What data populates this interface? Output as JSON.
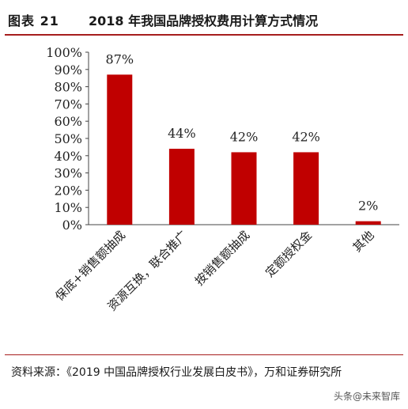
{
  "header": {
    "figure_label": "图表 21",
    "title": "2018 年我国品牌授权费用计算方式情况"
  },
  "chart_data": {
    "type": "bar",
    "categories": [
      "保底+销售额抽成",
      "资源互换，联合推广",
      "按销售额抽成",
      "定额授权金",
      "其他"
    ],
    "values": [
      87,
      44,
      42,
      42,
      2
    ],
    "value_labels": [
      "87%",
      "44%",
      "42%",
      "42%",
      "2%"
    ],
    "y_ticks": [
      "0%",
      "10%",
      "20%",
      "30%",
      "40%",
      "50%",
      "60%",
      "70%",
      "80%",
      "90%",
      "100%"
    ],
    "ylim": [
      0,
      100
    ],
    "bar_color": "#c00000",
    "grid": false,
    "title": "",
    "xlabel": "",
    "ylabel": ""
  },
  "footer": {
    "source_text": "资料来源：《2019 中国品牌授权行业发展白皮书》，万和证券研究所",
    "watermark": "头条@未来智库"
  }
}
